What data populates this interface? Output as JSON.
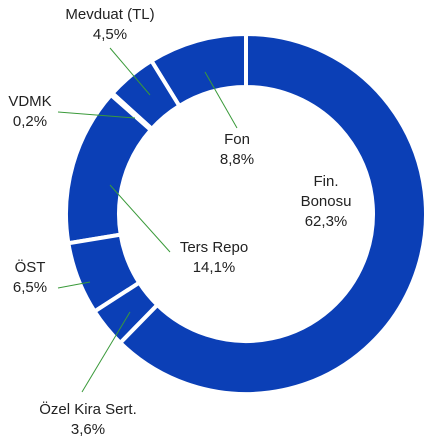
{
  "chart_data": {
    "type": "donut",
    "categories": [
      "Fin. Bonosu",
      "Özel Kira Sert.",
      "ÖST",
      "Ters Repo",
      "VDMK",
      "Mevduat (TL)",
      "Fon"
    ],
    "values": [
      62.3,
      3.6,
      6.5,
      14.1,
      0.2,
      4.5,
      8.8
    ],
    "value_labels": [
      "62,3%",
      "3,6%",
      "6,5%",
      "14,1%",
      "0,2%",
      "4,5%",
      "8,8%"
    ],
    "color": "#0b3fb6"
  }
}
